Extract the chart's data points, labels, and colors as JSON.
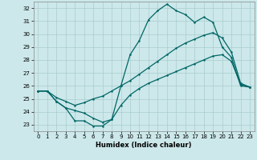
{
  "xlabel": "Humidex (Indice chaleur)",
  "bg_color": "#cce8ea",
  "grid_color": "#aacccc",
  "line_color": "#006666",
  "xlim": [
    -0.5,
    23.5
  ],
  "ylim": [
    22.5,
    32.5
  ],
  "xticks": [
    0,
    1,
    2,
    3,
    4,
    5,
    6,
    7,
    8,
    9,
    10,
    11,
    12,
    13,
    14,
    15,
    16,
    17,
    18,
    19,
    20,
    21,
    22,
    23
  ],
  "yticks": [
    23,
    24,
    25,
    26,
    27,
    28,
    29,
    30,
    31,
    32
  ],
  "line_top": {
    "x": [
      0,
      1,
      2,
      3,
      4,
      5,
      6,
      7,
      8,
      9,
      10,
      11,
      12,
      13,
      14,
      15,
      16,
      17,
      18,
      19,
      20,
      21,
      22,
      23
    ],
    "y": [
      25.6,
      25.6,
      24.8,
      24.3,
      23.3,
      23.3,
      22.9,
      22.9,
      23.4,
      26.0,
      28.4,
      29.5,
      31.1,
      31.8,
      32.3,
      31.8,
      31.5,
      30.9,
      31.3,
      30.9,
      29.0,
      28.2,
      26.0,
      25.9
    ]
  },
  "line_mid": {
    "x": [
      0,
      1,
      2,
      3,
      4,
      5,
      6,
      7,
      8,
      9,
      10,
      11,
      12,
      13,
      14,
      15,
      16,
      17,
      18,
      19,
      20,
      21,
      22,
      23
    ],
    "y": [
      25.6,
      25.6,
      25.1,
      24.8,
      24.5,
      24.7,
      25.0,
      25.2,
      25.6,
      26.0,
      26.4,
      26.9,
      27.4,
      27.9,
      28.4,
      28.9,
      29.3,
      29.6,
      29.9,
      30.1,
      29.7,
      28.6,
      26.2,
      25.9
    ]
  },
  "line_bot": {
    "x": [
      0,
      1,
      2,
      3,
      4,
      5,
      6,
      7,
      8,
      9,
      10,
      11,
      12,
      13,
      14,
      15,
      16,
      17,
      18,
      19,
      20,
      21,
      22,
      23
    ],
    "y": [
      25.6,
      25.6,
      24.8,
      24.3,
      24.1,
      23.9,
      23.5,
      23.2,
      23.4,
      24.5,
      25.3,
      25.8,
      26.2,
      26.5,
      26.8,
      27.1,
      27.4,
      27.7,
      28.0,
      28.3,
      28.4,
      27.9,
      26.1,
      25.9
    ]
  }
}
